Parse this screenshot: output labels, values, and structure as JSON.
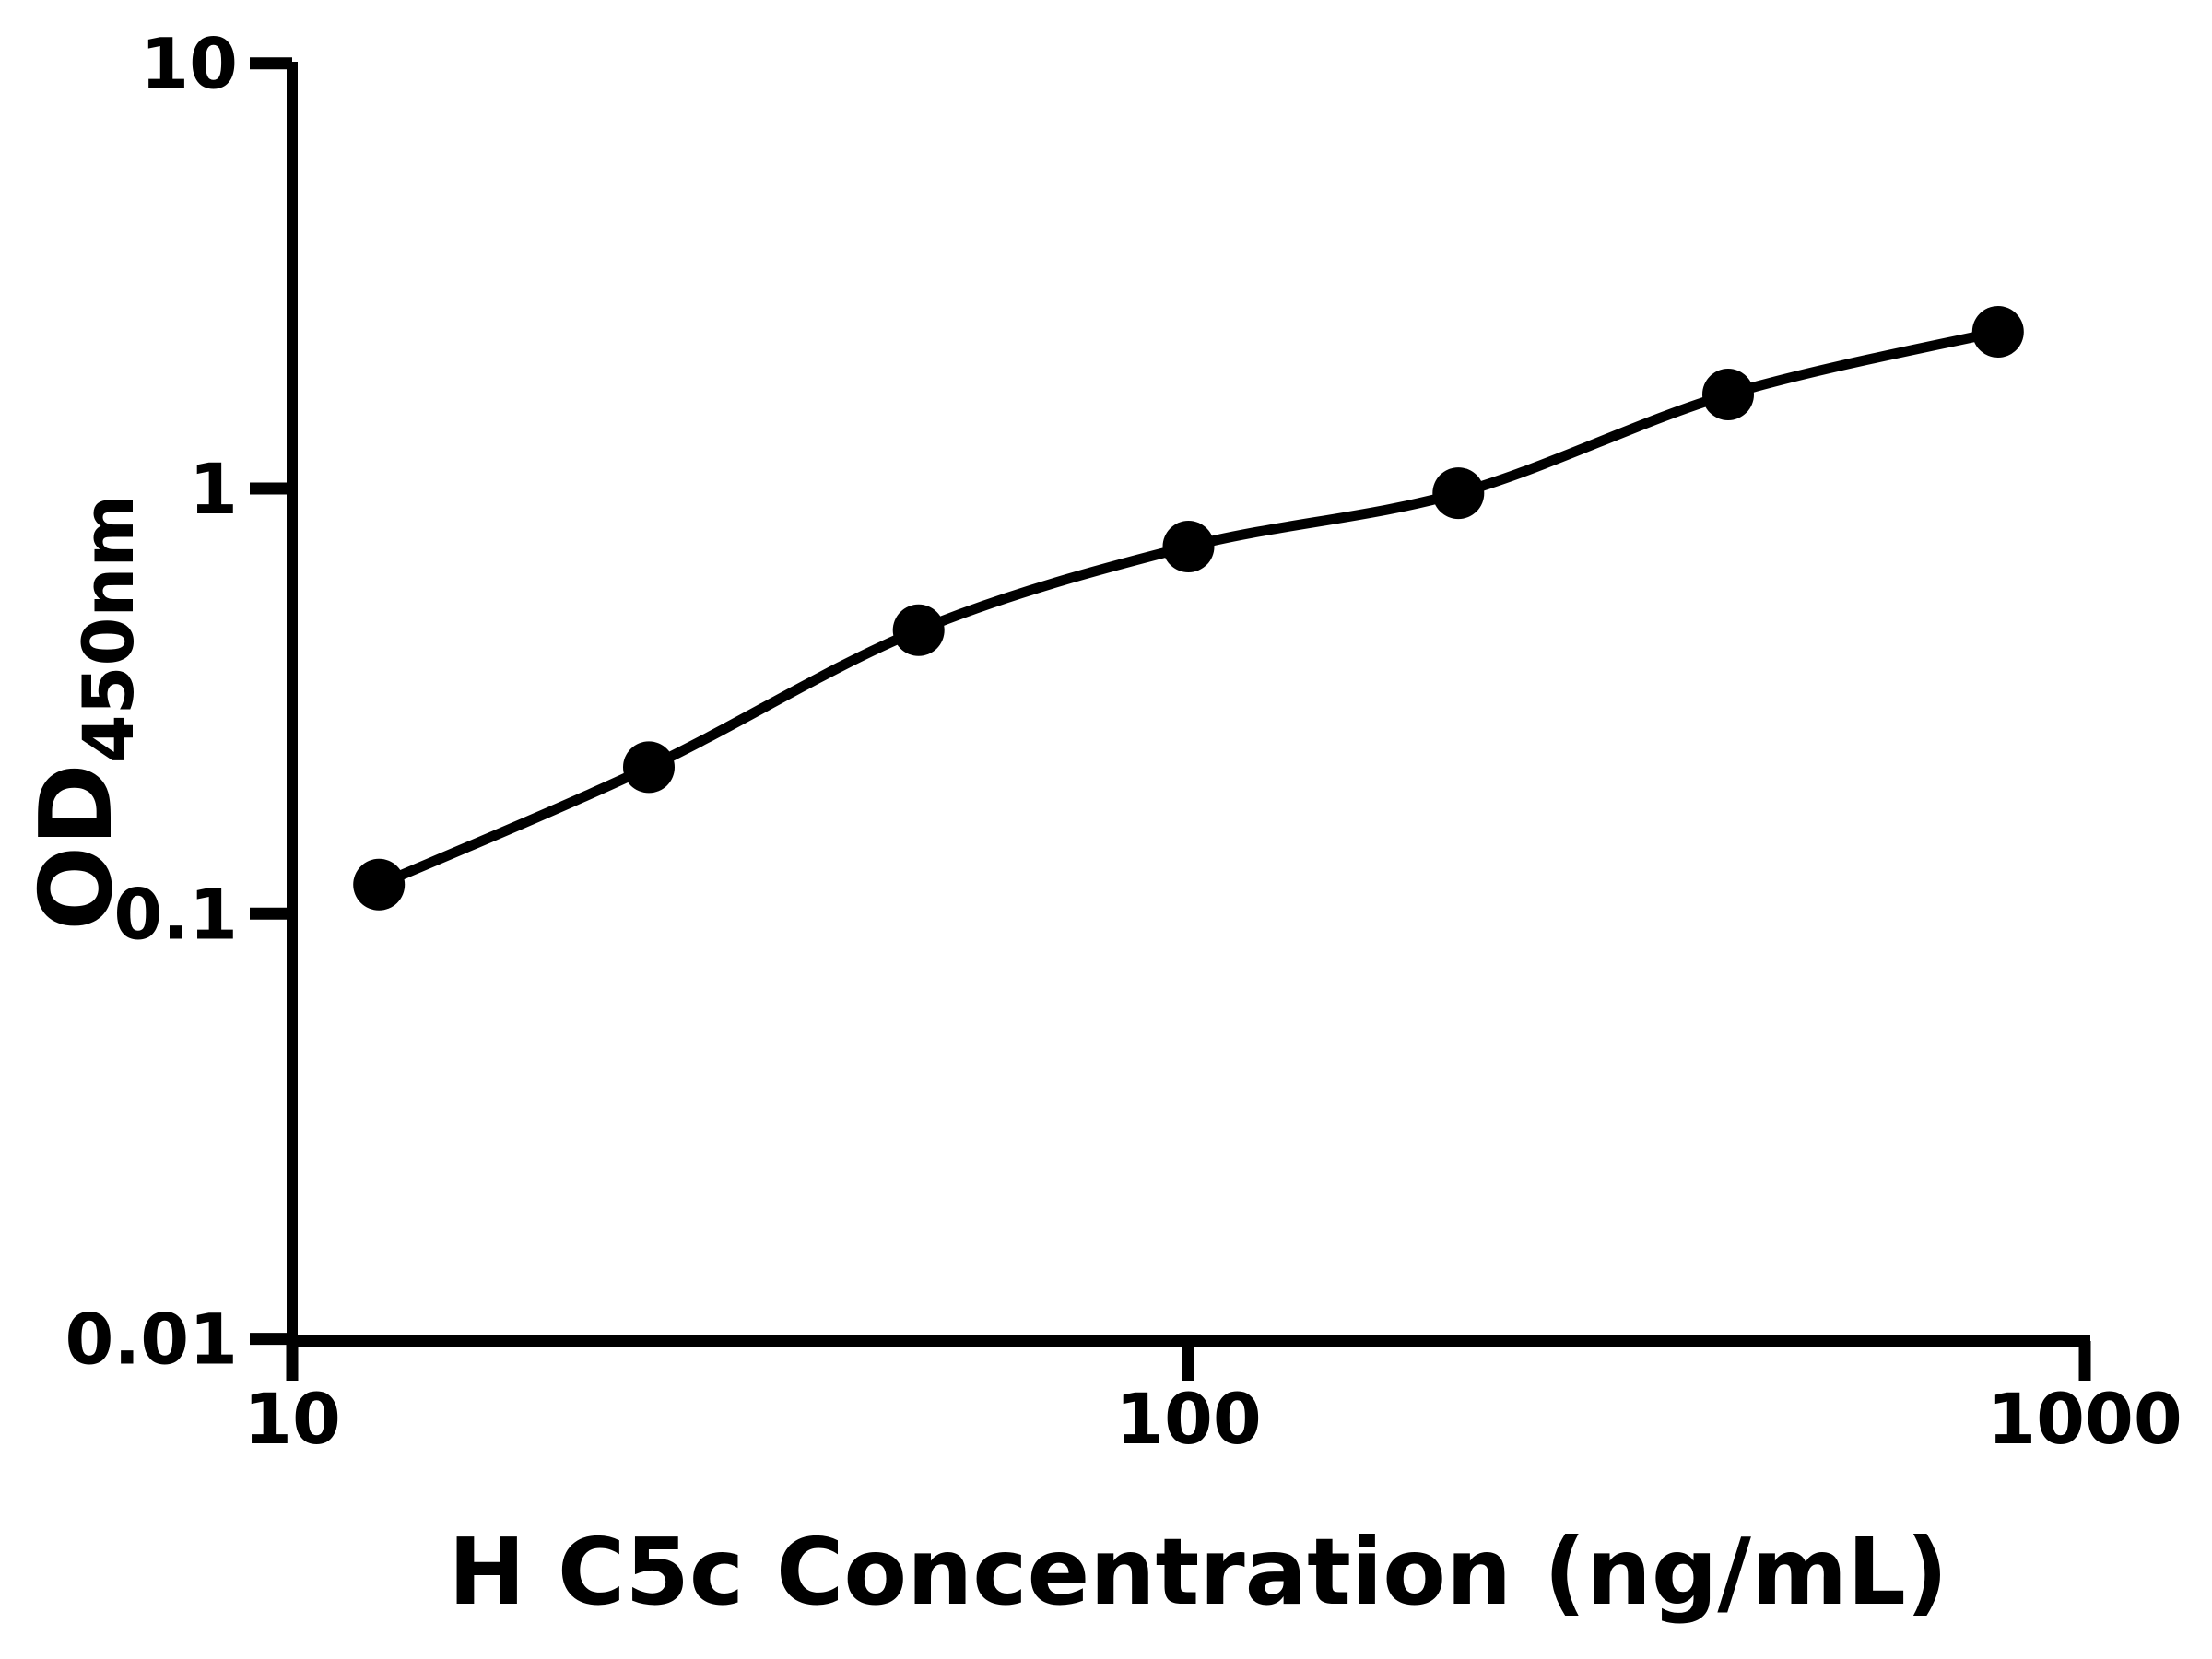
{
  "chart_data": {
    "type": "scatter",
    "title": "",
    "x": [
      12.5,
      25,
      50,
      100,
      200,
      400,
      800
    ],
    "y": [
      0.117,
      0.221,
      0.464,
      0.73,
      0.975,
      1.664,
      2.336
    ],
    "xlabel": "H C5c Concentration (ng/mL)",
    "ylabel": "OD",
    "ylabel_subscript": "450nm",
    "x_scale": "log",
    "y_scale": "log",
    "xlim": [
      10,
      1000
    ],
    "ylim": [
      0.01,
      10
    ],
    "x_ticks": {
      "values": [
        10,
        100,
        1000
      ],
      "labels": [
        "10",
        "100",
        "1000"
      ]
    },
    "y_ticks": {
      "values": [
        10,
        1,
        0.1,
        0.01
      ],
      "labels": [
        "10",
        "1",
        "0.1",
        "0.01"
      ]
    },
    "grid": false,
    "legend": "none",
    "line_through_points": true,
    "marker": "filled-circle",
    "colors": {
      "line": "#000000",
      "marker": "#000000",
      "axis": "#000000",
      "text": "#000000",
      "background": "#ffffff"
    }
  }
}
